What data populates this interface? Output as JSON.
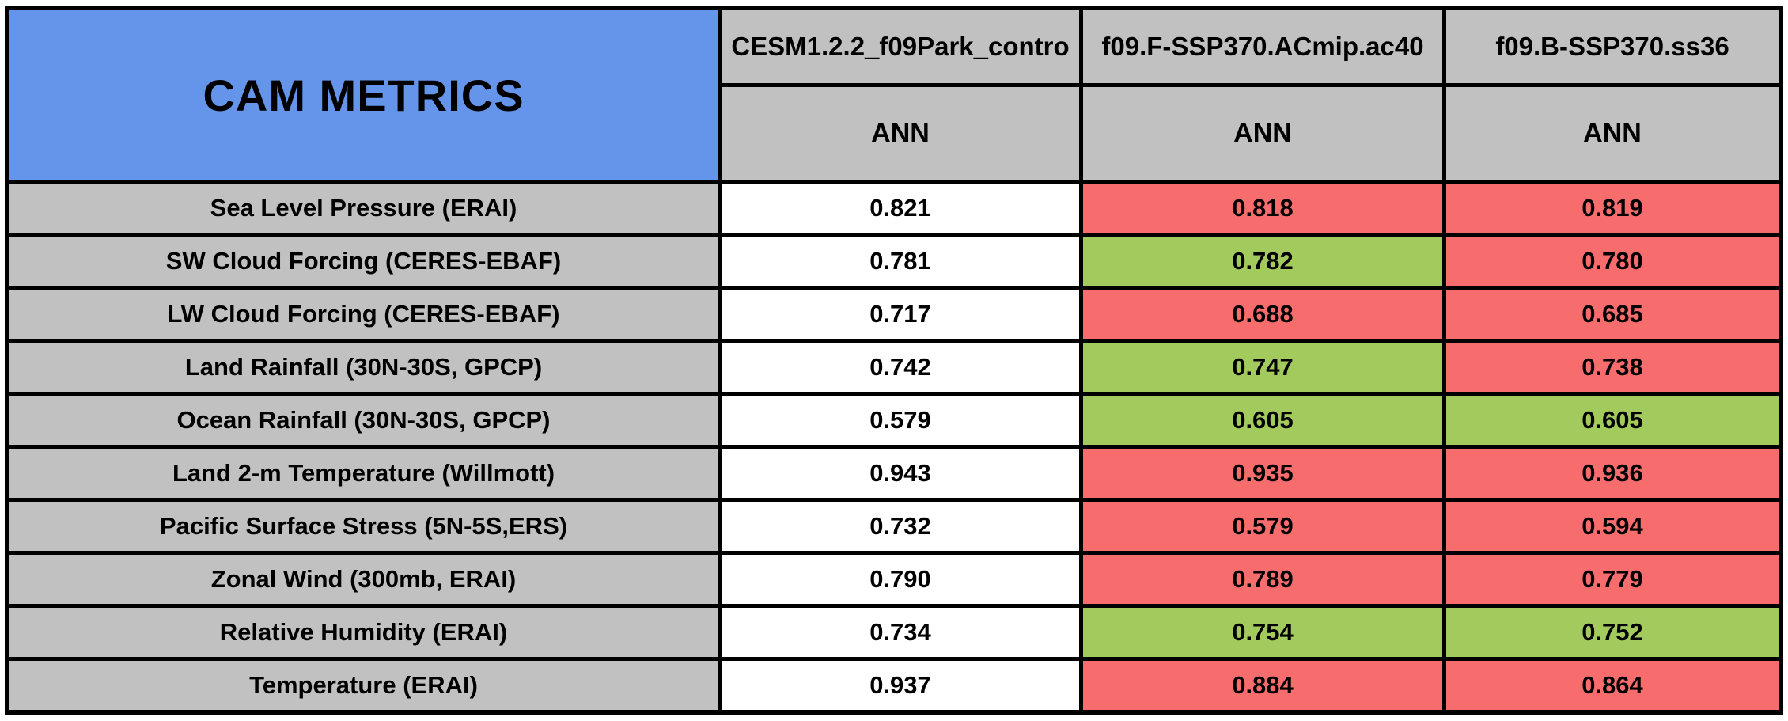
{
  "title": "CAM METRICS",
  "colors": {
    "title_bg": "#6495EB",
    "header_bg": "#C1C1C1",
    "improved_green": "#A2CA5C",
    "degraded_red": "#F76D6D",
    "control_white": "#FFFFFF",
    "border_black": "#000000"
  },
  "chart_data": {
    "type": "table",
    "title": "CAM METRICS",
    "columns": [
      "CESM1.2.2_f09Park_contro",
      "f09.F-SSP370.ACmip.ac40",
      "f09.B-SSP370.ss36"
    ],
    "sub_columns": [
      "ANN",
      "ANN",
      "ANN"
    ],
    "rows": [
      {
        "metric": "Sea Level Pressure (ERAI)",
        "values": [
          "0.821",
          "0.818",
          "0.819"
        ],
        "cell_colors": [
          "white",
          "red",
          "red"
        ]
      },
      {
        "metric": "SW Cloud Forcing (CERES-EBAF)",
        "values": [
          "0.781",
          "0.782",
          "0.780"
        ],
        "cell_colors": [
          "white",
          "green",
          "red"
        ]
      },
      {
        "metric": "LW Cloud Forcing (CERES-EBAF)",
        "values": [
          "0.717",
          "0.688",
          "0.685"
        ],
        "cell_colors": [
          "white",
          "red",
          "red"
        ]
      },
      {
        "metric": "Land Rainfall (30N-30S, GPCP)",
        "values": [
          "0.742",
          "0.747",
          "0.738"
        ],
        "cell_colors": [
          "white",
          "green",
          "red"
        ]
      },
      {
        "metric": "Ocean Rainfall (30N-30S, GPCP)",
        "values": [
          "0.579",
          "0.605",
          "0.605"
        ],
        "cell_colors": [
          "white",
          "green",
          "green"
        ]
      },
      {
        "metric": "Land 2-m Temperature (Willmott)",
        "values": [
          "0.943",
          "0.935",
          "0.936"
        ],
        "cell_colors": [
          "white",
          "red",
          "red"
        ]
      },
      {
        "metric": "Pacific Surface Stress (5N-5S,ERS)",
        "values": [
          "0.732",
          "0.579",
          "0.594"
        ],
        "cell_colors": [
          "white",
          "red",
          "red"
        ]
      },
      {
        "metric": "Zonal Wind (300mb, ERAI)",
        "values": [
          "0.790",
          "0.789",
          "0.779"
        ],
        "cell_colors": [
          "white",
          "red",
          "red"
        ]
      },
      {
        "metric": "Relative Humidity (ERAI)",
        "values": [
          "0.734",
          "0.754",
          "0.752"
        ],
        "cell_colors": [
          "white",
          "green",
          "green"
        ]
      },
      {
        "metric": "Temperature (ERAI)",
        "values": [
          "0.937",
          "0.884",
          "0.864"
        ],
        "cell_colors": [
          "white",
          "red",
          "red"
        ]
      }
    ]
  }
}
